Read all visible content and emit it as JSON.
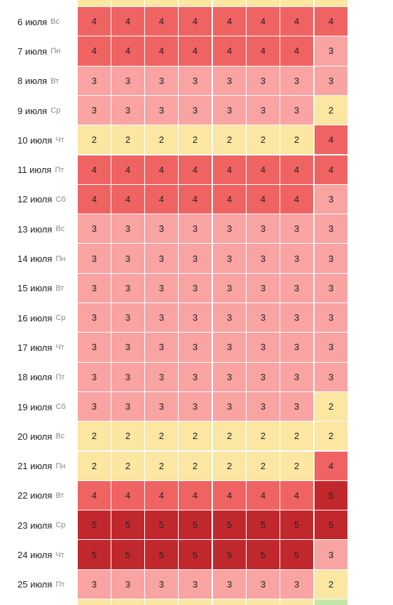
{
  "colors": {
    "2": "#fbe6a2",
    "3": "#f9a3a3",
    "4": "#f06363",
    "5": "#c1282d",
    "green": "#c4e6a6"
  },
  "rows": [
    {
      "date": "6 июля",
      "weekday": "Вс",
      "values": [
        4,
        4,
        4,
        4,
        4,
        4,
        4,
        4
      ]
    },
    {
      "date": "7 июля",
      "weekday": "Пн",
      "values": [
        4,
        4,
        4,
        4,
        4,
        4,
        4,
        3
      ]
    },
    {
      "date": "8 июля",
      "weekday": "Вт",
      "values": [
        3,
        3,
        3,
        3,
        3,
        3,
        3,
        3
      ]
    },
    {
      "date": "9 июля",
      "weekday": "Ср",
      "values": [
        3,
        3,
        3,
        3,
        3,
        3,
        3,
        2
      ]
    },
    {
      "date": "10 июля",
      "weekday": "Чт",
      "values": [
        2,
        2,
        2,
        2,
        2,
        2,
        2,
        4
      ]
    },
    {
      "date": "11 июля",
      "weekday": "Пт",
      "values": [
        4,
        4,
        4,
        4,
        4,
        4,
        4,
        4
      ]
    },
    {
      "date": "12 июля",
      "weekday": "Сб",
      "values": [
        4,
        4,
        4,
        4,
        4,
        4,
        4,
        3
      ]
    },
    {
      "date": "13 июля",
      "weekday": "Вс",
      "values": [
        3,
        3,
        3,
        3,
        3,
        3,
        3,
        3
      ]
    },
    {
      "date": "14 июля",
      "weekday": "Пн",
      "values": [
        3,
        3,
        3,
        3,
        3,
        3,
        3,
        3
      ]
    },
    {
      "date": "15 июля",
      "weekday": "Вт",
      "values": [
        3,
        3,
        3,
        3,
        3,
        3,
        3,
        3
      ]
    },
    {
      "date": "16 июля",
      "weekday": "Ср",
      "values": [
        3,
        3,
        3,
        3,
        3,
        3,
        3,
        3
      ]
    },
    {
      "date": "17 июля",
      "weekday": "Чт",
      "values": [
        3,
        3,
        3,
        3,
        3,
        3,
        3,
        3
      ]
    },
    {
      "date": "18 июля",
      "weekday": "Пт",
      "values": [
        3,
        3,
        3,
        3,
        3,
        3,
        3,
        3
      ]
    },
    {
      "date": "19 июля",
      "weekday": "Сб",
      "values": [
        3,
        3,
        3,
        3,
        3,
        3,
        3,
        2
      ]
    },
    {
      "date": "20 июля",
      "weekday": "Вс",
      "values": [
        2,
        2,
        2,
        2,
        2,
        2,
        2,
        2
      ]
    },
    {
      "date": "21 июля",
      "weekday": "Пн",
      "values": [
        2,
        2,
        2,
        2,
        2,
        2,
        2,
        4
      ]
    },
    {
      "date": "22 июля",
      "weekday": "Вт",
      "values": [
        4,
        4,
        4,
        4,
        4,
        4,
        4,
        5
      ]
    },
    {
      "date": "23 июля",
      "weekday": "Ср",
      "values": [
        5,
        5,
        5,
        5,
        5,
        5,
        5,
        5
      ]
    },
    {
      "date": "24 июля",
      "weekday": "Чт",
      "values": [
        5,
        5,
        5,
        5,
        5,
        5,
        5,
        3
      ]
    },
    {
      "date": "25 июля",
      "weekday": "Пт",
      "values": [
        3,
        3,
        3,
        3,
        3,
        3,
        3,
        2
      ]
    }
  ],
  "top_partial_levels": [
    2,
    2,
    2,
    2,
    2,
    2,
    2,
    2
  ],
  "bottom_partial_levels": [
    2,
    2,
    2,
    2,
    2,
    2,
    2,
    "green"
  ]
}
